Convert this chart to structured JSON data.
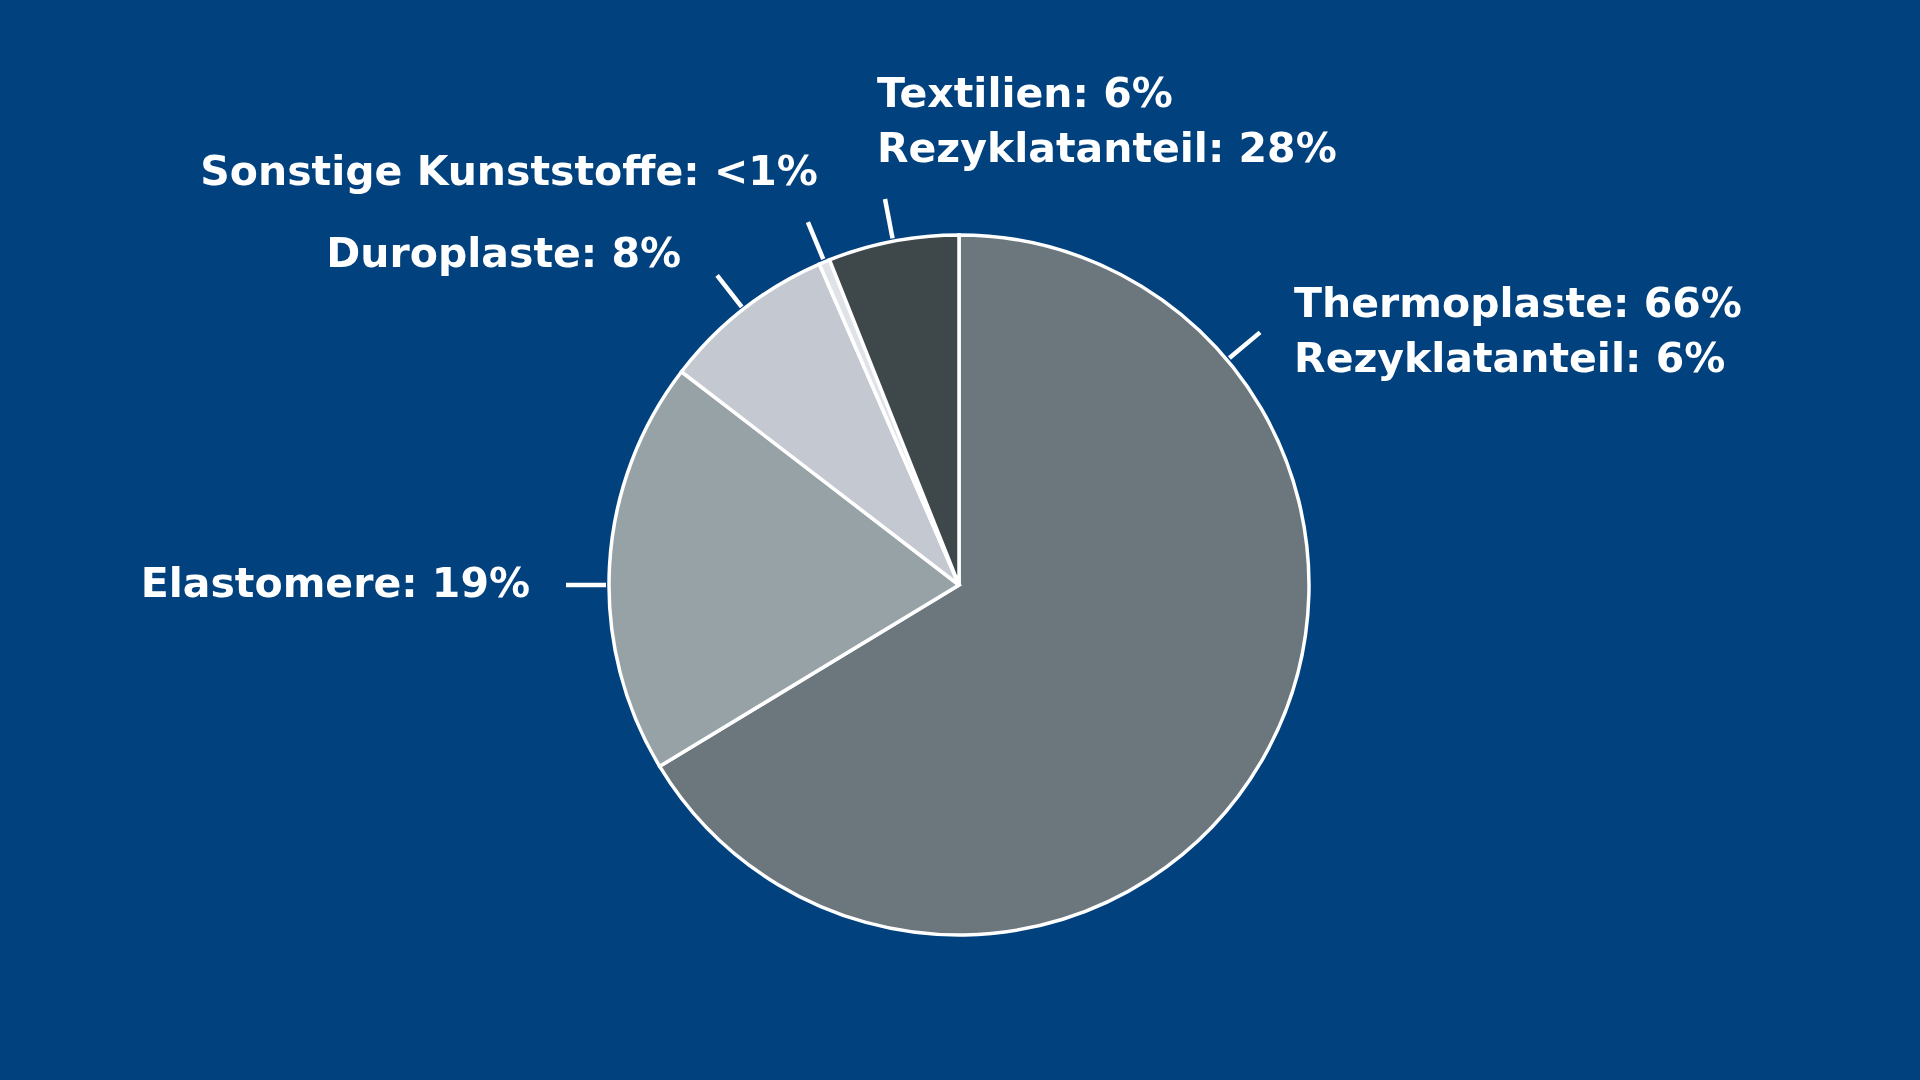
{
  "chart_data": {
    "type": "pie",
    "categories": [
      "Thermoplaste",
      "Elastomere",
      "Duroplaste",
      "Sonstige Kunststoffe",
      "Textilien"
    ],
    "values": [
      66,
      19,
      8,
      0.5,
      6
    ],
    "value_labels": [
      "66%",
      "19%",
      "8%",
      "<1%",
      "6%"
    ],
    "colors": [
      "#6b777c",
      "#97a2a6",
      "#c4c8d0",
      "#dfe3e8",
      "#3e484b"
    ],
    "annotations": [
      {
        "text": "Rezyklatanteil: 6%",
        "x": "Thermoplaste"
      },
      {
        "text": "Rezyklatanteil: 28%",
        "x": "Textilien"
      }
    ]
  }
}
